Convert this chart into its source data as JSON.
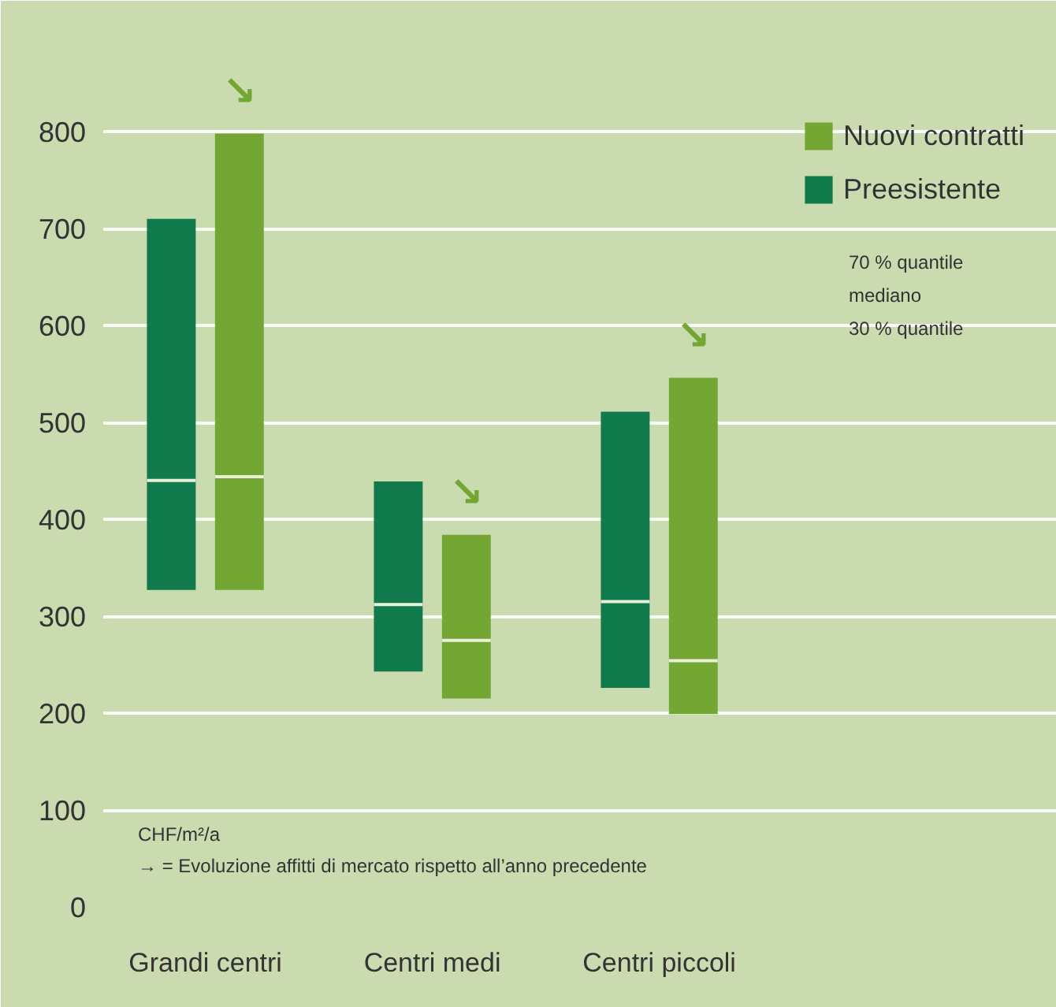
{
  "chart_data": {
    "type": "box",
    "categories": [
      "Grandi centri",
      "Centri medi",
      "Centri piccoli"
    ],
    "series": [
      {
        "name": "Preesistente",
        "color": "#117a4d",
        "boxes": [
          {
            "low": 327,
            "q1": 327,
            "median": 440,
            "q3": 710,
            "high": 710
          },
          {
            "low": 243,
            "q1": 243,
            "median": 312,
            "q3": 439,
            "high": 439
          },
          {
            "low": 226,
            "q1": 226,
            "median": 315,
            "q3": 511,
            "high": 511
          }
        ]
      },
      {
        "name": "Nuovi contratti",
        "color": "#74a633",
        "boxes": [
          {
            "low": 327,
            "q1": 327,
            "median": 444,
            "q3": 798,
            "high": 798
          },
          {
            "low": 215,
            "q1": 215,
            "median": 275,
            "q3": 384,
            "high": 384
          },
          {
            "low": 199,
            "q1": 199,
            "median": 254,
            "q3": 546,
            "high": 546
          }
        ]
      }
    ],
    "ylim": [
      0,
      870
    ],
    "yticks": [
      0,
      100,
      200,
      300,
      400,
      500,
      600,
      700,
      800
    ],
    "grid": "y",
    "legend": "right",
    "annotations": [
      "70 % quantile",
      "mediano",
      "30 % quantile",
      "CHF/m²/a",
      "→ = Evoluzione affitti di mercato rispetto all’anno precedente",
      "↘",
      "↘",
      "↘"
    ]
  }
}
